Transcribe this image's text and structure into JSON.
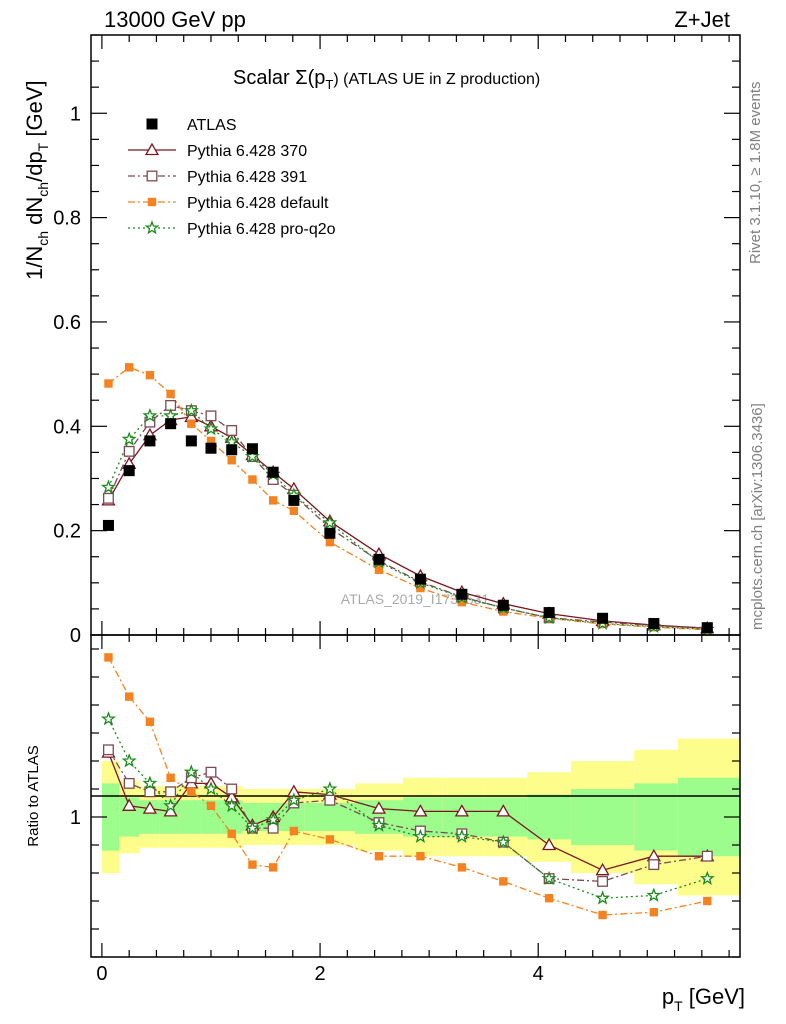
{
  "header": {
    "left": "13000 GeV pp",
    "right": "Z+Jet"
  },
  "side": {
    "rivet": "Rivet 3.1.10, ≥ 1.8M events",
    "mcplots": "mcplots.cern.ch [arXiv:1306.3436]"
  },
  "watermark": "ATLAS_2019_I1736531",
  "chart_data": {
    "type": "line",
    "title_main": "Scalar Σ(p",
    "title_sub": "T",
    "title_rest": ") (ATLAS UE in Z production)",
    "ylabel_top": "1/N",
    "ylabel_top_sub1": "ch",
    "ylabel_top_mid": " dN",
    "ylabel_top_sub2": "ch",
    "ylabel_top_end": "/dp",
    "ylabel_top_sub3": "T",
    "ylabel_top_unit": " [GeV]",
    "ylabel_bottom": "Ratio to ATLAS",
    "xlabel_main": "p",
    "xlabel_sub": "T",
    "xlabel_unit": " [GeV]",
    "xlim": [
      -0.1,
      5.85
    ],
    "ylim_top": [
      0,
      1.15
    ],
    "ylim_bottom": [
      0.5,
      1.65
    ],
    "x_ticks": [
      "0",
      "2",
      "4"
    ],
    "y_ticks_top": [
      "0",
      "0.2",
      "0.4",
      "0.6",
      "0.8",
      "1"
    ],
    "y_ticks_bottom": [
      "1"
    ],
    "x": [
      0.06,
      0.25,
      0.44,
      0.63,
      0.82,
      1.0,
      1.19,
      1.38,
      1.57,
      1.76,
      2.09,
      2.54,
      2.92,
      3.3,
      3.68,
      4.1,
      4.59,
      5.06,
      5.55
    ],
    "data": {
      "name": "ATLAS",
      "values": [
        0.21,
        0.315,
        0.372,
        0.405,
        0.372,
        0.358,
        0.355,
        0.357,
        0.312,
        0.258,
        0.195,
        0.145,
        0.107,
        0.078,
        0.057,
        0.043,
        0.032,
        0.022,
        0.014
      ]
    },
    "series": [
      {
        "name": "Pythia 6.428 370",
        "values": [
          0.258,
          0.328,
          0.383,
          0.412,
          0.418,
          0.4,
          0.378,
          0.345,
          0.312,
          0.28,
          0.218,
          0.155,
          0.113,
          0.082,
          0.06,
          0.041,
          0.027,
          0.019,
          0.013
        ],
        "color": "#7a1620",
        "style": "solid",
        "marker": "triangle-open"
      },
      {
        "name": "Pythia 6.428 391",
        "values": [
          0.262,
          0.352,
          0.408,
          0.44,
          0.43,
          0.42,
          0.392,
          0.342,
          0.298,
          0.268,
          0.205,
          0.142,
          0.102,
          0.073,
          0.052,
          0.033,
          0.025,
          0.018,
          0.013
        ],
        "color": "#7a4a55",
        "style": "dashdot",
        "marker": "square-open"
      },
      {
        "name": "Pythia 6.428 default",
        "values": [
          0.482,
          0.513,
          0.498,
          0.462,
          0.405,
          0.372,
          0.335,
          0.298,
          0.258,
          0.238,
          0.178,
          0.125,
          0.09,
          0.063,
          0.045,
          0.032,
          0.021,
          0.015,
          0.01
        ],
        "color": "#f58220",
        "style": "dashdot",
        "marker": "square-filled"
      },
      {
        "name": "Pythia 6.428 pro-q2o",
        "values": [
          0.283,
          0.375,
          0.42,
          0.42,
          0.43,
          0.395,
          0.37,
          0.342,
          0.308,
          0.268,
          0.215,
          0.14,
          0.1,
          0.072,
          0.052,
          0.033,
          0.022,
          0.016,
          0.011
        ],
        "color": "#1a8a1a",
        "style": "dotted",
        "marker": "star-open"
      }
    ],
    "ratios": [
      [
        1.23,
        1.04,
        1.03,
        1.02,
        1.12,
        1.12,
        1.07,
        0.97,
        1.0,
        1.09,
        1.08,
        1.03,
        1.02,
        1.02,
        1.02,
        0.9,
        0.81,
        0.86,
        0.86
      ],
      [
        1.24,
        1.12,
        1.09,
        1.09,
        1.14,
        1.16,
        1.1,
        0.96,
        0.96,
        1.05,
        1.06,
        0.98,
        0.95,
        0.94,
        0.91,
        0.78,
        0.77,
        0.83,
        0.86
      ],
      [
        1.57,
        1.43,
        1.34,
        1.14,
        1.09,
        1.04,
        0.94,
        0.83,
        0.82,
        0.95,
        0.92,
        0.86,
        0.86,
        0.82,
        0.77,
        0.71,
        0.65,
        0.66,
        0.7
      ],
      [
        1.35,
        1.2,
        1.12,
        1.04,
        1.16,
        1.1,
        1.04,
        0.96,
        0.99,
        1.06,
        1.1,
        0.97,
        0.93,
        0.93,
        0.91,
        0.78,
        0.71,
        0.72,
        0.78
      ]
    ],
    "band_edges": [
      0,
      0.16,
      0.34,
      0.53,
      0.72,
      0.91,
      1.1,
      1.29,
      1.48,
      1.67,
      1.86,
      2.32,
      2.76,
      3.12,
      3.5,
      3.9,
      4.3,
      4.88,
      5.28,
      5.85
    ],
    "band_green": [
      0.12,
      0.07,
      0.06,
      0.06,
      0.06,
      0.06,
      0.06,
      0.05,
      0.05,
      0.05,
      0.05,
      0.06,
      0.07,
      0.07,
      0.07,
      0.08,
      0.1,
      0.12,
      0.14
    ],
    "band_yellow": [
      0.2,
      0.13,
      0.11,
      0.11,
      0.11,
      0.11,
      0.11,
      0.1,
      0.1,
      0.1,
      0.1,
      0.12,
      0.14,
      0.14,
      0.14,
      0.16,
      0.2,
      0.24,
      0.28
    ],
    "legend_position": "top-left",
    "grid": false
  },
  "colors": {
    "axis": "#000000",
    "side_text": "#808080",
    "watermark": "#aaaaaa",
    "band_green": "#9cfc8c",
    "band_yellow": "#fdfd8c"
  }
}
